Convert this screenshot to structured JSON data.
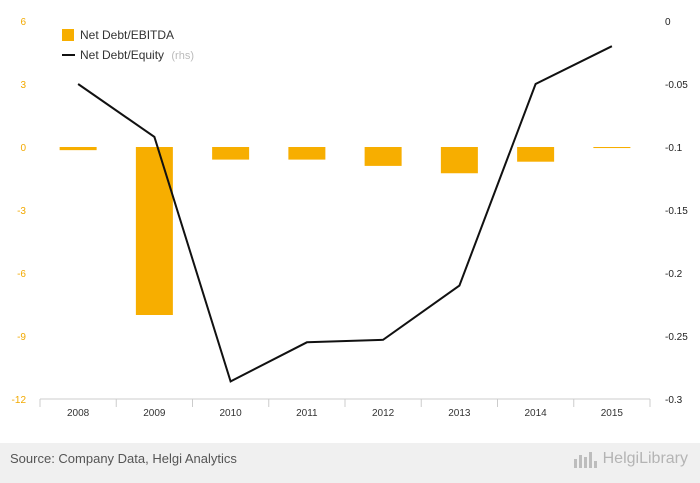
{
  "chart_data": {
    "type": "bar",
    "categories": [
      "2008",
      "2009",
      "2010",
      "2011",
      "2012",
      "2013",
      "2014",
      "2015"
    ],
    "series": [
      {
        "name": "Net Debt/EBITDA",
        "type": "bar",
        "axis": "left",
        "color": "#f7ae00",
        "values": [
          -0.15,
          -8.0,
          -0.6,
          -0.6,
          -0.9,
          -1.25,
          -0.7,
          -0.05
        ]
      },
      {
        "name": "Net Debt/Equity",
        "axis_note": "(rhs)",
        "type": "line",
        "axis": "right",
        "color": "#111111",
        "values": [
          -0.05,
          -0.092,
          -0.286,
          -0.255,
          -0.253,
          -0.21,
          -0.05,
          -0.02
        ]
      }
    ],
    "ylim_left": [
      -12,
      6
    ],
    "yticks_left": [
      "6",
      "3",
      "0",
      "-3",
      "-6",
      "-9",
      "-12"
    ],
    "ylim_right": [
      -0.3,
      0.0
    ],
    "yticks_right": [
      "0",
      "-0.05",
      "-0.1",
      "-0.15",
      "-0.2",
      "-0.25",
      "-0.3"
    ],
    "legend_position": "top-left",
    "grid": false
  },
  "footer": {
    "source": "Source: Company Data, Helgi Analytics",
    "logo_text": "HelgiLibrary",
    "logo_icon": "bar-chart-icon"
  }
}
